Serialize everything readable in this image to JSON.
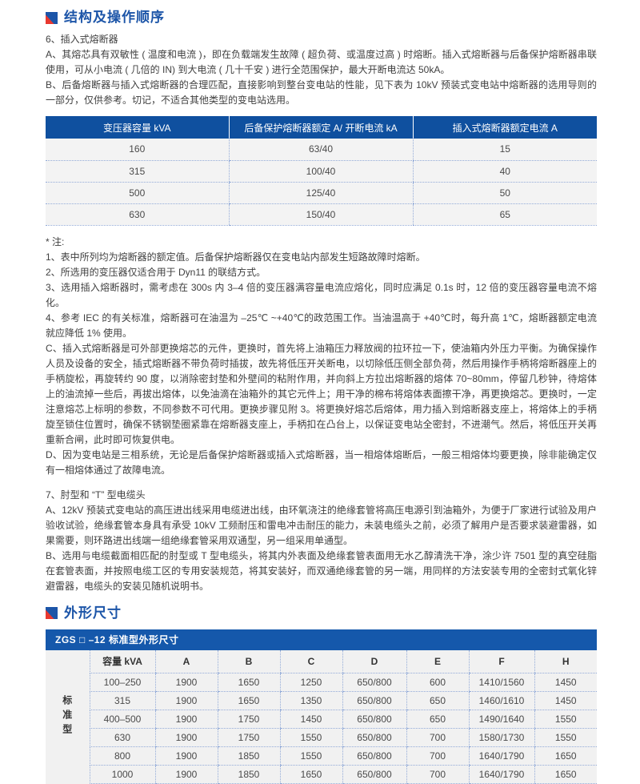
{
  "colors": {
    "accent_blue": "#1c55a8",
    "table_header_blue": "#0f509f",
    "table_title_blue": "#1558ab",
    "icon_red": "#e8382f",
    "row_gray": "#f3f3f3",
    "dotted_border": "#93abd8"
  },
  "section_structure": {
    "title": "结构及操作顺序",
    "paragraphs": [
      "6、插入式熔断器",
      "A、其熔芯具有双敏性 ( 温度和电流 )，即在负载端发生故障 ( 超负荷、或温度过高 ) 时熔断。插入式熔断器与后备保护熔断器串联使用，可从小电流 ( 几倍的 IN) 到大电流 ( 几十千安 ) 进行全范围保护，最大开断电流达 50kA。",
      "B、后备熔断器与插入式熔断器的合理匹配，直接影响到整台变电站的性能，见下表为 10kV 预装式变电站中熔断器的选用导则的一部分，仅供参考。切记，不适合其他类型的变电站选用。"
    ]
  },
  "fuse_table": {
    "headers": [
      "变压器容量 kVA",
      "后备保护熔断器额定 A/ 开断电流 kA",
      "插入式熔断器额定电流 A"
    ],
    "rows": [
      [
        "160",
        "63/40",
        "15"
      ],
      [
        "315",
        "100/40",
        "40"
      ],
      [
        "500",
        "125/40",
        "50"
      ],
      [
        "630",
        "150/40",
        "65"
      ]
    ]
  },
  "notes": {
    "label": "* 注:",
    "items": [
      "1、表中所列均为熔断器的额定值。后备保护熔断器仅在变电站内部发生短路故障时熔断。",
      "2、所选用的变压器仅适合用于 Dyn11 的联结方式。",
      "3、选用插入熔断器时，需考虑在 300s 内 3–4 倍的变压器满容量电流应熔化，同时应满足 0.1s 时，12 倍的变压器容量电流不熔化。",
      "4、参考 IEC 的有关标准，熔断器可在油温为 –25℃ ~+40℃的政范围工作。当油温高于 +40℃时，每升高 1℃，熔断器额定电流就应降低 1% 使用。",
      "C、插入式熔断器是可外部更换熔芯的元件，更换时，首先将上油箱压力释放阀的拉环拉一下，使油箱内外压力平衡。为确保操作人员及设备的安全，插式熔断器不带负荷时插拔，故先将低压开关断电，以切除低压侧全部负荷，然后用操作手柄将熔断器座上的手柄旋松，再旋转约 90 度，以消除密封垫和外壁间的粘附作用，并向斜上方拉出熔断器的熔体 70~80mm，停留几秒钟，待熔体上的油流掉一些后，再拔出熔体，以免油滴在油箱外的其它元件上；用干净的棉布将熔体表面擦干净，再更换熔芯。更换时，一定注意熔芯上标明的参数，不同参数不可代用。更换步骤见附 3。将更换好熔芯后熔体，用力插入到熔断器支座上，将熔体上的手柄旋至锁住位置时，确保不锈钢垫圈紧靠在熔断器支座上，手柄扣在凸台上，以保证变电站全密封，不进潮气。然后，将低压开关再重新合闸，此时即可恢复供电。",
      "D、因为变电站是三相系统，无论是后备保护熔断器或插入式熔断器，当一相熔体熔断后，一般三相熔体均要更换，除非能确定仅有一相熔体通过了故障电流。"
    ]
  },
  "section_cable": {
    "paragraphs": [
      "7、肘型和 “T” 型电缆头",
      "A、12kV 预装式变电站的高压进出线采用电缆进出线，由环氧浇注的绝缘套管将高压电源引到油箱外，为便于厂家进行试验及用户验收试验，绝缘套管本身具有承受 10kV 工频耐压和雷电冲击耐压的能力，未装电缆头之前，必须了解用户是否要求装避雷器，如果需要，则环路进出线端一组绝缘套管采用双通型，另一组采用单通型。",
      "B、选用与电缆截面相匹配的肘型或 T 型电缆头，将其内外表面及绝缘套管表面用无水乙醇清洗干净，涂少许 7501 型的真空硅脂在套管表面，并按照电缆工区的专用安装规范，将其安装好，而双通绝缘套管的另一端，用同样的方法安装专用的全密封式氧化锌避雷器，电缆头的安装见随机说明书。"
    ]
  },
  "section_dimensions": {
    "title": "外形尺寸",
    "dim_table": {
      "bar_title": "ZGS □ –12 标准型外形尺寸",
      "side_label": "标准型",
      "headers": [
        "容量 kVA",
        "A",
        "B",
        "C",
        "D",
        "E",
        "F",
        "H"
      ],
      "rows": [
        [
          "100–250",
          "1900",
          "1650",
          "1250",
          "650/800",
          "600",
          "1410/1560",
          "1450"
        ],
        [
          "315",
          "1900",
          "1650",
          "1350",
          "650/800",
          "650",
          "1460/1610",
          "1450"
        ],
        [
          "400–500",
          "1900",
          "1750",
          "1450",
          "650/800",
          "650",
          "1490/1640",
          "1550"
        ],
        [
          "630",
          "1900",
          "1750",
          "1550",
          "650/800",
          "700",
          "1580/1730",
          "1550"
        ],
        [
          "800",
          "1900",
          "1850",
          "1550",
          "650/800",
          "700",
          "1640/1790",
          "1650"
        ],
        [
          "1000",
          "1900",
          "1850",
          "1650",
          "650/800",
          "700",
          "1640/1790",
          "1650"
        ]
      ]
    }
  }
}
